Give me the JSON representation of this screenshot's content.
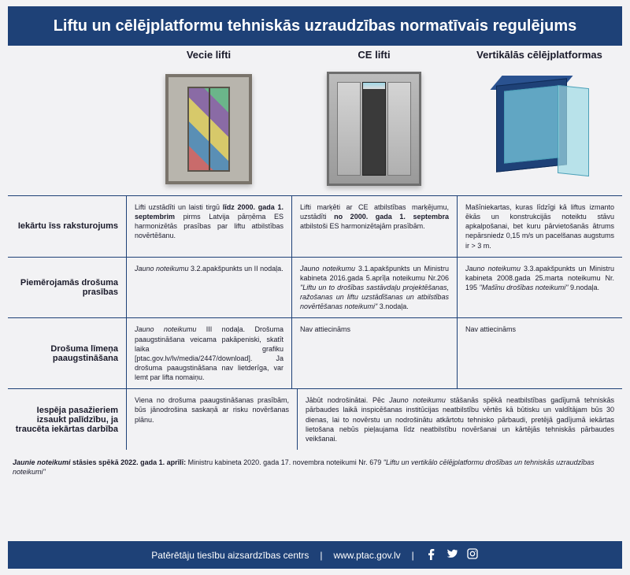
{
  "colors": {
    "brand": "#1e4177",
    "bg": "#f2f2f4",
    "text": "#1a1a2a",
    "border": "#1e4177"
  },
  "header": {
    "title": "Liftu un cēlējplatformu tehniskās uzraudzības normatīvais regulējums"
  },
  "columns": {
    "c1": "Vecie lifti",
    "c2": "CE lifti",
    "c3": "Vertikālās cēlējplatformas"
  },
  "rows": {
    "r1": {
      "label": "Iekārtu īss raksturojums",
      "c1": "Lifti uzstādīti un laisti tirgū <b>līdz 2000. gada 1. septembrim</b> pirms Latvija pārņēma ES harmonizētās prasības par liftu atbilstības novērtēšanu.",
      "c2": "Lifti marķēti ar CE atbilstības marķējumu, uzstādīti <b>no 2000. gada 1. septembra</b> atbilstoši ES harmonizētajām prasībām.",
      "c3": "Mašīniekartas, kuras līdzīgi kā liftus izmanto ēkās un konstrukcijās noteiktu stāvu apkalpošanai, bet kuru pārvietošanās ātrums nepārsniedz 0,15 m/s un pacelšanas augstums ir > 3 m."
    },
    "r2": {
      "label": "Piemērojamās drošuma prasības",
      "c1": "<em>Jauno noteikumu</em> 3.2.apakšpunkts un II nodaļa.",
      "c2": "<em>Jauno noteikumu</em> 3.1.apakšpunkts un Ministru kabineta 2016.gada 5.aprīļa noteikumu Nr.206 <em>\"Liftu un to drošības sastāvdaļu projektēšanas, ražošanas un liftu uzstādīšanas un atbilstības novērtēšanas noteikumi\"</em> 3.nodaļa.",
      "c3": "<em>Jauno noteikumu</em> 3.3.apakšpunkts un Ministru kabineta 2008.gada 25.marta noteikumu Nr. 195 <em>\"Mašīnu drošības noteikumi\"</em> 9.nodaļa."
    },
    "r3": {
      "label": "Drošuma līmeņa paaugstināšana",
      "c1": "<em>Jauno noteikumu</em> III nodaļa. Drošuma paaugstināšana veicama pakāpeniski, skatīt laika grafiku [ptac.gov.lv/lv/media/2447/download]. Ja drošuma paaugstināšana nav lietderīga, var lemt par lifta nomaiņu.",
      "c2": "Nav attiecināms",
      "c3": "Nav attiecināms"
    },
    "r4": {
      "label": "Iespēja pasažieriem izsaukt palīdzību, ja traucēta iekārtas darbība",
      "c1": "Viena no drošuma paaugstināšanas prasībām, būs jānodrošina saskaņā ar risku novēršanas plānu.",
      "c23": "Jābūt nodrošinātai. Pēc <em>Jauno noteikumu</em> stāšanās spēkā neatbilstības gadījumā tehniskās pārbaudes laikā inspicēšanas institūcijas neatbilstību vērtēs kā būtisku un valdītājam būs 30 dienas, lai to novērstu un nodrošinātu atkārtotu tehnisko pārbaudi, pretējā gadījumā iekārtas lietošana nebūs pieļaujama līdz neatbilstību novēršanai un kārtējās tehniskās pārbaudes veikšanai."
    }
  },
  "footnote": "<b><em>Jaunie noteikumi</em> stāsies spēkā 2022. gada 1. aprīlī:</b> Ministru kabineta 2020. gada 17. novembra noteikumi Nr. 679 <em>\"Liftu un vertikālo cēlējplatformu drošības un tehniskās uzraudzības noteikumi\"</em>",
  "footer": {
    "org": "Patērētāju tiesību aizsardzības centrs",
    "url": "www.ptac.gov.lv"
  }
}
